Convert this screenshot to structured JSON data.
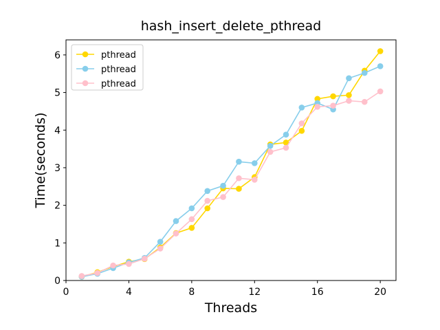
{
  "chart_data": {
    "type": "line",
    "title": "hash_insert_delete_pthread",
    "xlabel": "Threads",
    "ylabel": "Time(seconds)",
    "xlim": [
      0,
      21
    ],
    "ylim": [
      0,
      6.4
    ],
    "xticks": [
      0,
      4,
      8,
      12,
      16,
      20
    ],
    "yticks": [
      0,
      1,
      2,
      3,
      4,
      5,
      6
    ],
    "legend_position": "top-left",
    "grid": false,
    "x": [
      1,
      2,
      3,
      4,
      5,
      6,
      7,
      8,
      9,
      10,
      11,
      12,
      13,
      14,
      15,
      16,
      17,
      18,
      19,
      20
    ],
    "series": [
      {
        "name": "pthread",
        "color": "#FFD700",
        "values": [
          0.1,
          0.22,
          0.37,
          0.5,
          0.57,
          0.88,
          1.26,
          1.4,
          1.92,
          2.45,
          2.44,
          2.75,
          3.62,
          3.67,
          3.98,
          4.83,
          4.9,
          4.93,
          5.58,
          6.1
        ]
      },
      {
        "name": "pthread",
        "color": "#87CEEB",
        "values": [
          0.1,
          0.18,
          0.33,
          0.48,
          0.6,
          1.03,
          1.58,
          1.92,
          2.38,
          2.52,
          3.16,
          3.12,
          3.58,
          3.88,
          4.6,
          4.72,
          4.55,
          5.38,
          5.52,
          5.7
        ]
      },
      {
        "name": "pthread",
        "color": "#FFC0CB",
        "values": [
          0.12,
          0.2,
          0.4,
          0.44,
          0.58,
          0.85,
          1.25,
          1.63,
          2.12,
          2.22,
          2.72,
          2.68,
          3.42,
          3.53,
          4.18,
          4.62,
          4.65,
          4.78,
          4.75,
          5.03
        ]
      }
    ]
  }
}
